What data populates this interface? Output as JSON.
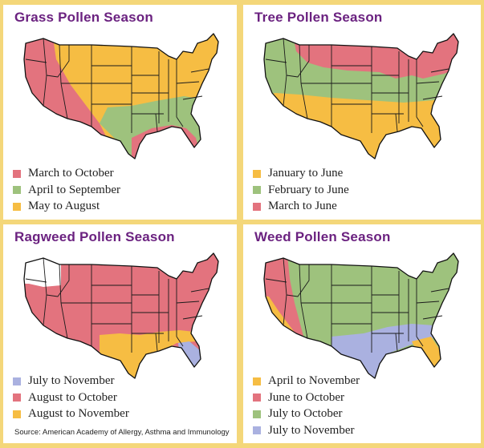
{
  "colors": {
    "pink": "#e3737e",
    "green": "#9ec27d",
    "yellow": "#f6bd43",
    "blue": "#aab1e0",
    "white": "#ffffff",
    "title": "#6b2280",
    "frame": "#f4d77a"
  },
  "panels": [
    {
      "title": "Grass Pollen Season",
      "legend": [
        {
          "label": "March to October",
          "color": "#e3737e"
        },
        {
          "label": "April to September",
          "color": "#9ec27d"
        },
        {
          "label": "May to August",
          "color": "#f6bd43"
        }
      ]
    },
    {
      "title": "Tree Pollen Season",
      "legend": [
        {
          "label": "January to June",
          "color": "#f6bd43"
        },
        {
          "label": "February to June",
          "color": "#9ec27d"
        },
        {
          "label": "March to June",
          "color": "#e3737e"
        }
      ]
    },
    {
      "title": "Ragweed Pollen Season",
      "legend": [
        {
          "label": "July to November",
          "color": "#aab1e0"
        },
        {
          "label": "August to October",
          "color": "#e3737e"
        },
        {
          "label": "August to November",
          "color": "#f6bd43"
        }
      ]
    },
    {
      "title": "Weed Pollen Season",
      "legend": [
        {
          "label": "April to November",
          "color": "#f6bd43"
        },
        {
          "label": "June to October",
          "color": "#e3737e"
        },
        {
          "label": "July to October",
          "color": "#9ec27d"
        },
        {
          "label": "July to November",
          "color": "#aab1e0"
        }
      ]
    }
  ],
  "source": "Source: American Academy of Allergy, Asthma and Immunology"
}
